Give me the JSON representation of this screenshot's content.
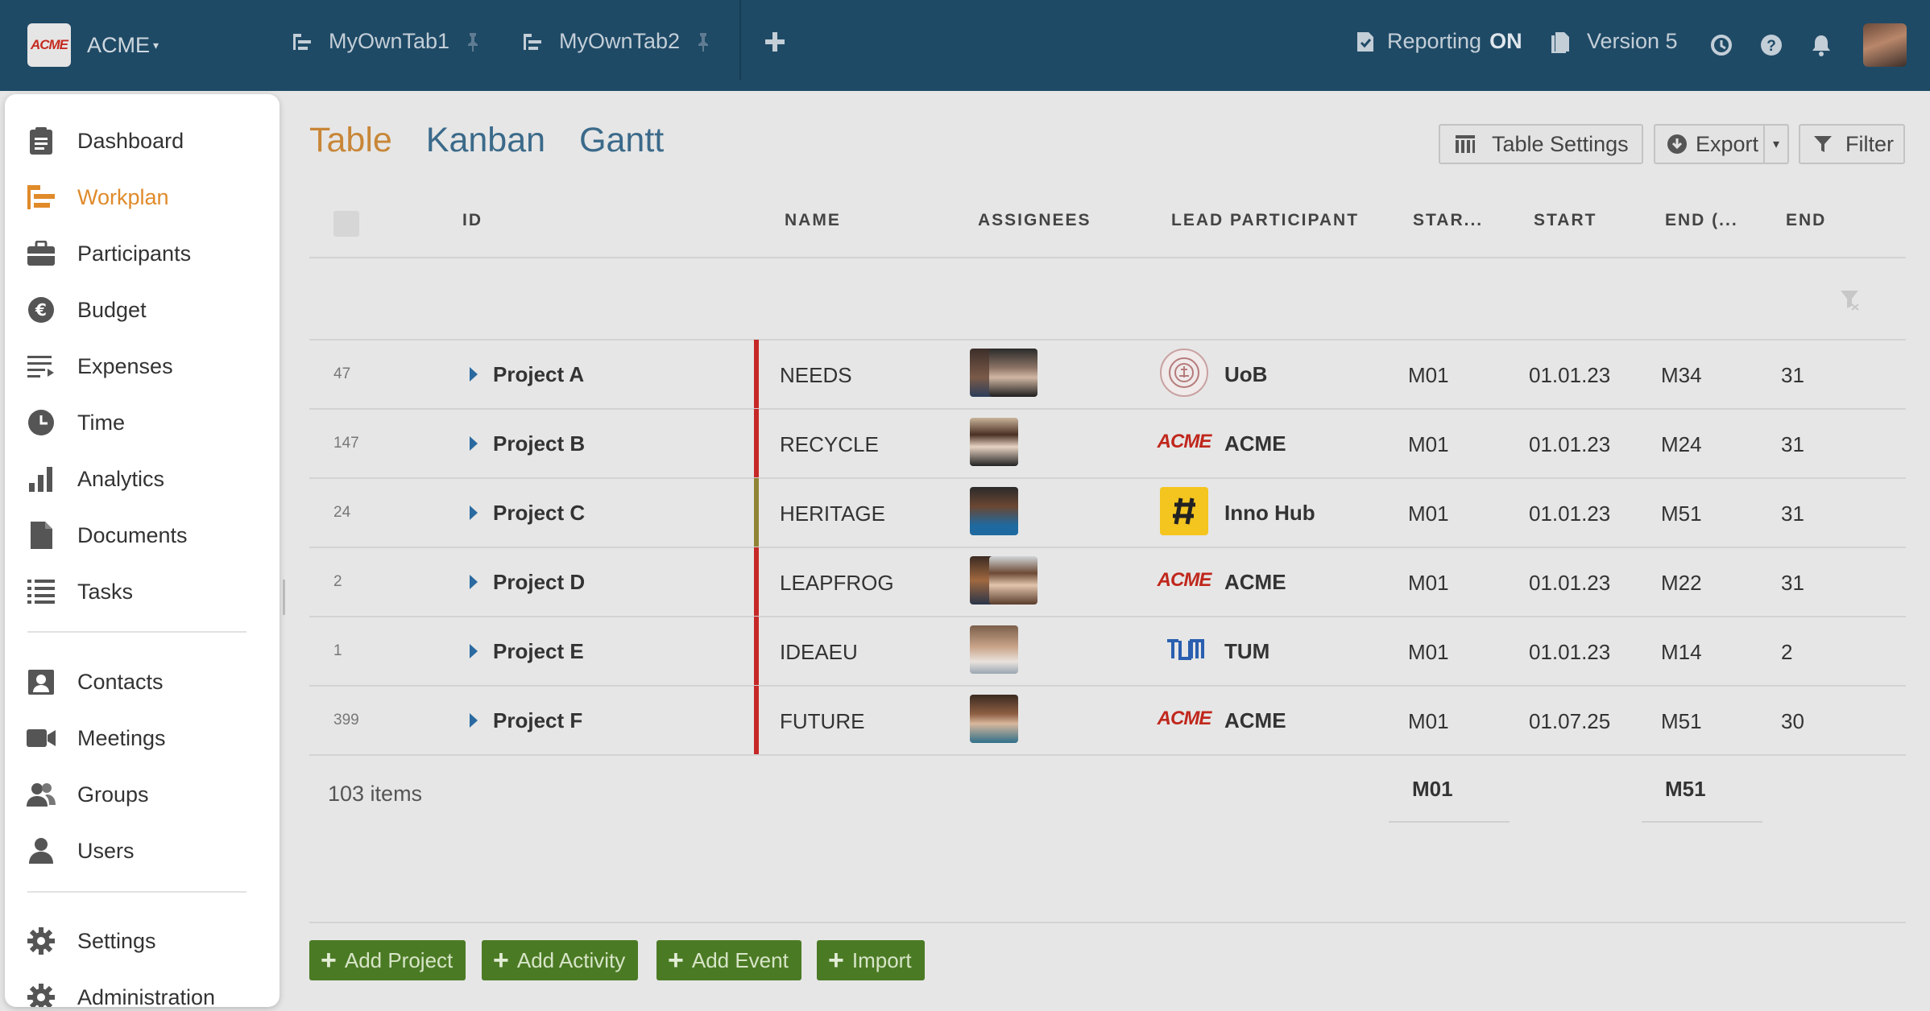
{
  "topbar": {
    "brand_logo_text": "ACME",
    "brand_name": "ACME",
    "tabs": [
      {
        "label": "MyOwnTab1"
      },
      {
        "label": "MyOwnTab2"
      }
    ],
    "reporting_label": "Reporting",
    "reporting_state": "ON",
    "version_label": "Version 5",
    "colors": {
      "bar": "#1f4a66"
    }
  },
  "view_tabs": [
    "Table",
    "Kanban",
    "Gantt"
  ],
  "toolbar": {
    "table_settings": "Table Settings",
    "export": "Export",
    "filter": "Filter"
  },
  "table": {
    "columns": [
      "ID",
      "NAME",
      "ASSIGNEES",
      "LEAD PARTICIPANT",
      "STAR...",
      "START",
      "END (...",
      "END"
    ],
    "rows": [
      {
        "id": "47",
        "project": "Project A",
        "name": "NEEDS",
        "lead": "UoB",
        "start_m": "M01",
        "start": "01.01.23",
        "end_m": "M34",
        "end": "31",
        "bar": "#c62828"
      },
      {
        "id": "147",
        "project": "Project B",
        "name": "RECYCLE",
        "lead": "ACME",
        "start_m": "M01",
        "start": "01.01.23",
        "end_m": "M24",
        "end": "31",
        "bar": "#c62828"
      },
      {
        "id": "24",
        "project": "Project C",
        "name": "HERITAGE",
        "lead": "Inno Hub",
        "start_m": "M01",
        "start": "01.01.23",
        "end_m": "M51",
        "end": "31",
        "bar": "#8f8436"
      },
      {
        "id": "2",
        "project": "Project D",
        "name": "LEAPFROG",
        "lead": "ACME",
        "start_m": "M01",
        "start": "01.01.23",
        "end_m": "M22",
        "end": "31",
        "bar": "#c62828"
      },
      {
        "id": "1",
        "project": "Project E",
        "name": "IDEAEU",
        "lead": "TUM",
        "start_m": "M01",
        "start": "01.01.23",
        "end_m": "M14",
        "end": "2",
        "bar": "#c62828"
      },
      {
        "id": "399",
        "project": "Project F",
        "name": "FUTURE",
        "lead": "ACME",
        "start_m": "M01",
        "start": "01.07.25",
        "end_m": "M51",
        "end": "30",
        "bar": "#c62828"
      }
    ],
    "footer": {
      "count": "103 items",
      "min_start": "M01",
      "max_end": "M51"
    }
  },
  "lead_logos": {
    "acme": "ACME",
    "tum": "TUM"
  },
  "actions": [
    "Add Project",
    "Add Activity",
    "Add Event",
    "Import"
  ],
  "sidebar": {
    "items": [
      {
        "label": "Dashboard"
      },
      {
        "label": "Workplan"
      },
      {
        "label": "Participants"
      },
      {
        "label": "Budget"
      },
      {
        "label": "Expenses"
      },
      {
        "label": "Time"
      },
      {
        "label": "Analytics"
      },
      {
        "label": "Documents"
      },
      {
        "label": "Tasks"
      },
      {
        "label": "Contacts"
      },
      {
        "label": "Meetings"
      },
      {
        "label": "Groups"
      },
      {
        "label": "Users"
      },
      {
        "label": "Settings"
      },
      {
        "label": "Administration"
      }
    ],
    "active_color": "#e08a2a"
  }
}
